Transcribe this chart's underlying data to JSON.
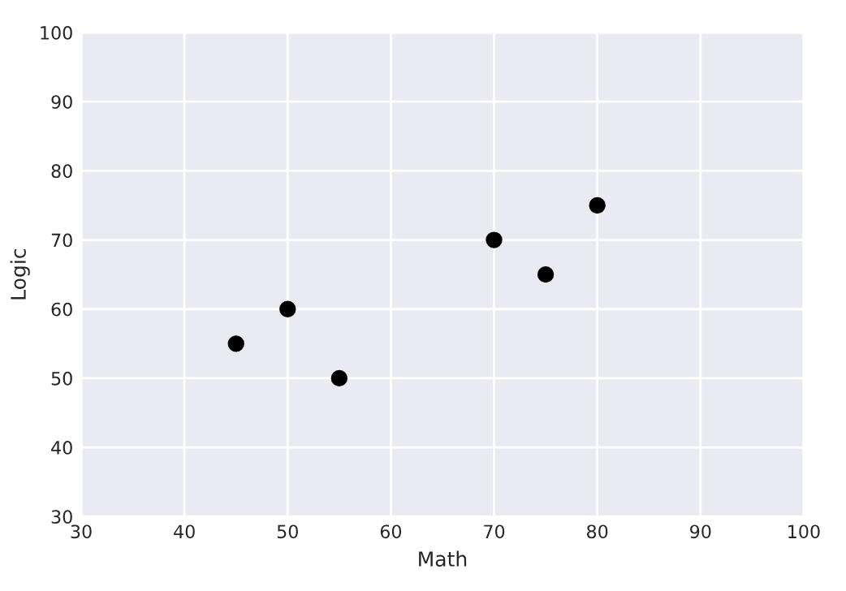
{
  "chart_data": {
    "type": "scatter",
    "xlabel": "Math",
    "ylabel": "Logic",
    "x": [
      45,
      50,
      55,
      70,
      75,
      80
    ],
    "series": [
      {
        "color": "#000000",
        "values": [
          55,
          60,
          50,
          70,
          65,
          75
        ]
      }
    ],
    "xlim": [
      30,
      100
    ],
    "ylim": [
      30,
      100
    ],
    "xticks": [
      30,
      40,
      50,
      60,
      70,
      80,
      90,
      100
    ],
    "yticks": [
      30,
      40,
      50,
      60,
      70,
      80,
      90,
      100
    ],
    "grid": true,
    "marker": "circle"
  }
}
